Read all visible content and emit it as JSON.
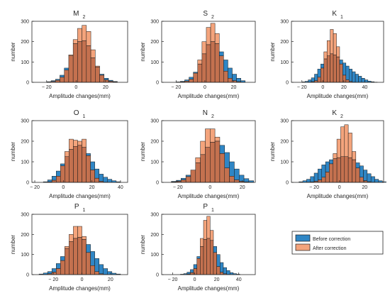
{
  "colors": {
    "before": "#2f86c5",
    "after": "#f4a47c",
    "overlap": "#c4714f",
    "edge": "#1a1a1a"
  },
  "legend": {
    "before": "Before correction",
    "after": "After correction"
  },
  "chart_data": [
    {
      "type": "bar",
      "title": "M",
      "title_sub": "2",
      "xlabel": "Amplitude changes(mm)",
      "ylabel": "number",
      "xlim": [
        -30,
        35
      ],
      "ylim": [
        0,
        300
      ],
      "xticks": [
        -20,
        0,
        20
      ],
      "yticks": [
        0,
        100,
        200,
        300
      ],
      "bin_start": -20,
      "bin_width": 3,
      "series": [
        {
          "name": "Before correction",
          "values": [
            3,
            8,
            15,
            35,
            70,
            130,
            190,
            200,
            205,
            180,
            120,
            75,
            40,
            20,
            10,
            4
          ]
        },
        {
          "name": "After correction",
          "values": [
            1,
            4,
            10,
            25,
            60,
            135,
            210,
            265,
            280,
            250,
            160,
            80,
            35,
            12,
            5,
            2
          ]
        }
      ]
    },
    {
      "type": "bar",
      "title": "S",
      "title_sub": "2",
      "xlabel": "Amplitude changes(mm)",
      "ylabel": "number",
      "xlim": [
        -30,
        35
      ],
      "ylim": [
        0,
        300
      ],
      "xticks": [
        -20,
        0,
        20
      ],
      "yticks": [
        0,
        100,
        200,
        300
      ],
      "bin_start": -20,
      "bin_width": 3,
      "series": [
        {
          "name": "Before correction",
          "values": [
            2,
            5,
            12,
            25,
            50,
            90,
            140,
            185,
            200,
            190,
            150,
            110,
            70,
            40,
            20,
            8
          ]
        },
        {
          "name": "After correction",
          "values": [
            1,
            2,
            6,
            15,
            45,
            110,
            200,
            270,
            290,
            240,
            130,
            55,
            20,
            8,
            3,
            1
          ]
        }
      ]
    },
    {
      "type": "bar",
      "title": "K",
      "title_sub": "1",
      "xlabel": "Amplitude changes(mm)",
      "ylabel": "number",
      "xlim": [
        -30,
        58
      ],
      "ylim": [
        0,
        300
      ],
      "xticks": [
        -20,
        0,
        20,
        40
      ],
      "yticks": [
        0,
        100,
        200,
        300
      ],
      "bin_start": -20,
      "bin_width": 3,
      "series": [
        {
          "name": "Before correction",
          "values": [
            2,
            5,
            12,
            22,
            40,
            65,
            90,
            115,
            130,
            140,
            135,
            125,
            110,
            95,
            80,
            65,
            52,
            40,
            30,
            20,
            12,
            6,
            3,
            1
          ]
        },
        {
          "name": "After correction",
          "values": [
            0,
            0,
            1,
            3,
            8,
            25,
            70,
            150,
            205,
            260,
            240,
            175,
            90,
            35,
            12,
            4,
            1,
            0,
            0,
            0,
            0,
            0,
            0,
            0
          ]
        }
      ]
    },
    {
      "type": "bar",
      "title": "O",
      "title_sub": "1",
      "xlabel": "Amplitude changes(mm)",
      "ylabel": "number",
      "xlim": [
        -22,
        45
      ],
      "ylim": [
        0,
        300
      ],
      "xticks": [
        -20,
        0,
        20,
        40
      ],
      "yticks": [
        0,
        100,
        200,
        300
      ],
      "bin_start": -14,
      "bin_width": 3,
      "series": [
        {
          "name": "Before correction",
          "values": [
            3,
            12,
            30,
            55,
            90,
            125,
            160,
            175,
            180,
            170,
            140,
            100,
            65,
            40,
            25,
            15,
            8,
            3
          ]
        },
        {
          "name": "After correction",
          "values": [
            0,
            2,
            10,
            30,
            80,
            150,
            210,
            205,
            200,
            210,
            130,
            60,
            20,
            5,
            1,
            0,
            0,
            0
          ]
        }
      ]
    },
    {
      "type": "bar",
      "title": "N",
      "title_sub": "2",
      "xlabel": "Amplitude changes(mm)",
      "ylabel": "number",
      "xlim": [
        -30,
        28
      ],
      "ylim": [
        0,
        300
      ],
      "xticks": [
        -20,
        0,
        20
      ],
      "yticks": [
        0,
        100,
        200,
        300
      ],
      "bin_start": -24,
      "bin_width": 3,
      "series": [
        {
          "name": "Before correction",
          "values": [
            5,
            10,
            20,
            35,
            60,
            95,
            135,
            170,
            195,
            200,
            180,
            145,
            100,
            65,
            35,
            18,
            8
          ]
        },
        {
          "name": "After correction",
          "values": [
            2,
            5,
            12,
            28,
            60,
            120,
            200,
            260,
            260,
            220,
            140,
            70,
            30,
            12,
            5,
            2,
            1
          ]
        }
      ]
    },
    {
      "type": "bar",
      "title": "K",
      "title_sub": "2",
      "xlabel": "Amplitude changes(mm)",
      "ylabel": "number",
      "xlim": [
        -38,
        35
      ],
      "ylim": [
        0,
        300
      ],
      "xticks": [
        -20,
        0,
        20
      ],
      "yticks": [
        0,
        100,
        200,
        300
      ],
      "bin_start": -32,
      "bin_width": 3,
      "series": [
        {
          "name": "Before correction",
          "values": [
            3,
            8,
            15,
            28,
            45,
            65,
            85,
            100,
            110,
            115,
            120,
            125,
            125,
            120,
            110,
            95,
            80,
            60,
            42,
            28,
            15,
            8,
            3
          ]
        },
        {
          "name": "After correction",
          "values": [
            0,
            0,
            1,
            2,
            5,
            12,
            25,
            50,
            90,
            140,
            210,
            270,
            280,
            240,
            150,
            70,
            25,
            8,
            3,
            1,
            0,
            0,
            0
          ]
        }
      ]
    },
    {
      "type": "bar",
      "title": "P",
      "title_sub": "1",
      "xlabel": "Amplitude changes(mm)",
      "ylabel": "number",
      "xlim": [
        -35,
        32
      ],
      "ylim": [
        0,
        300
      ],
      "xticks": [
        -20,
        0,
        20
      ],
      "yticks": [
        0,
        100,
        200,
        300
      ],
      "bin_start": -30,
      "bin_width": 3,
      "series": [
        {
          "name": "Before correction",
          "values": [
            3,
            8,
            15,
            30,
            55,
            90,
            130,
            165,
            180,
            185,
            175,
            150,
            115,
            80,
            50,
            30,
            15,
            7,
            3
          ]
        },
        {
          "name": "After correction",
          "values": [
            0,
            1,
            4,
            12,
            30,
            70,
            140,
            200,
            240,
            240,
            190,
            110,
            45,
            15,
            4,
            1,
            0,
            0,
            0
          ]
        }
      ]
    },
    {
      "type": "bar",
      "title": "P",
      "title_sub": "1",
      "xlabel": "Amplitude changes(mm)",
      "ylabel": "number",
      "xlim": [
        -30,
        55
      ],
      "ylim": [
        0,
        300
      ],
      "xticks": [
        -20,
        0,
        20,
        40
      ],
      "yticks": [
        0,
        100,
        200,
        300
      ],
      "bin_start": -13,
      "bin_width": 3,
      "series": [
        {
          "name": "Before correction",
          "values": [
            2,
            5,
            12,
            25,
            50,
            90,
            140,
            175,
            180,
            170,
            140,
            100,
            60,
            35,
            20,
            10,
            5,
            2
          ]
        },
        {
          "name": "After correction",
          "values": [
            0,
            1,
            3,
            10,
            30,
            80,
            180,
            270,
            290,
            220,
            110,
            40,
            12,
            4,
            1,
            0,
            0,
            0
          ]
        }
      ]
    }
  ]
}
